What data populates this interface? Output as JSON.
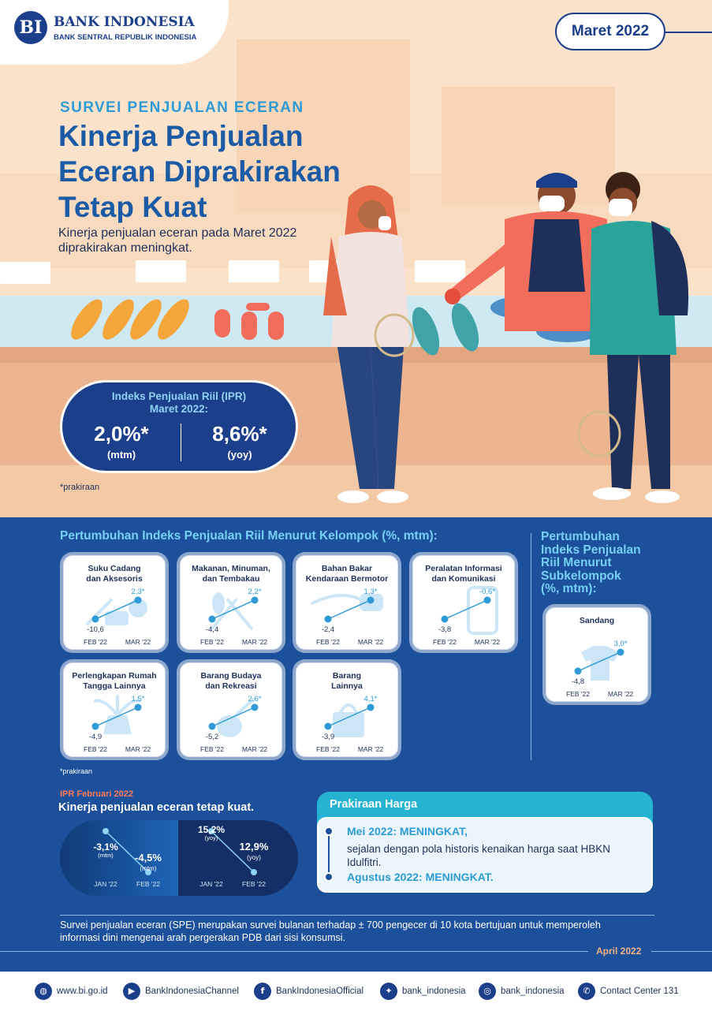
{
  "brand": {
    "logo_mark": "BI",
    "name": "BANK INDONESIA",
    "subtitle": "BANK SENTRAL REPUBLIK INDONESIA"
  },
  "period_badge": "Maret 2022",
  "hero": {
    "kicker": "SURVEI PENJUALAN ECERAN",
    "headline": "Kinerja Penjualan Eceran Diprakirakan Tetap Kuat",
    "lead": "Kinerja penjualan eceran pada Maret 2022 diprakirakan meningkat.",
    "ipr": {
      "title_line1": "Indeks Penjualan Riil (IPR)",
      "title_line2": "Maret 2022:",
      "mtm_value": "2,0%*",
      "mtm_unit": "(mtm)",
      "yoy_value": "8,6%*",
      "yoy_unit": "(yoy)"
    },
    "note": "*prakiraan"
  },
  "groups_section": {
    "title": "Pertumbuhan Indeks Penjualan Riil Menurut Kelompok (%, mtm):",
    "note": "*prakiraan",
    "x_labels": [
      "FEB '22",
      "MAR '22"
    ],
    "cards": [
      {
        "title_lines": [
          "Suku Cadang",
          "dan Aksesoris"
        ],
        "icon": "car-parts-icon",
        "feb": "-10,6",
        "mar": "2,3*",
        "feb_value": -10.6,
        "mar_value": 2.3
      },
      {
        "title_lines": [
          "Makanan, Minuman,",
          "dan Tembakau"
        ],
        "icon": "cutlery-icon",
        "feb": "-4,4",
        "mar": "2,2*",
        "feb_value": -4.4,
        "mar_value": 2.2
      },
      {
        "title_lines": [
          "Bahan Bakar",
          "Kendaraan Bermotor"
        ],
        "icon": "fuel-nozzle-icon",
        "feb": "-2,4",
        "mar": "1,3*",
        "feb_value": -2.4,
        "mar_value": 1.3
      },
      {
        "title_lines": [
          "Peralatan Informasi",
          "dan Komunikasi"
        ],
        "icon": "phone-icon",
        "feb": "-3,8",
        "mar": "-0,6*",
        "feb_value": -3.8,
        "mar_value": -0.6
      },
      {
        "title_lines": [
          "Perlengkapan Rumah",
          "Tangga Lainnya"
        ],
        "icon": "plant-pot-icon",
        "feb": "-4,9",
        "mar": "1,5*",
        "feb_value": -4.9,
        "mar_value": 1.5
      },
      {
        "title_lines": [
          "Barang Budaya",
          "dan Rekreasi"
        ],
        "icon": "guitar-icon",
        "feb": "-5,2",
        "mar": "2,6*",
        "feb_value": -5.2,
        "mar_value": 2.6
      },
      {
        "title_lines": [
          "Barang",
          "Lainnya"
        ],
        "icon": "shopping-bag-icon",
        "feb": "-3,9",
        "mar": "4,1*",
        "feb_value": -3.9,
        "mar_value": 4.1
      }
    ]
  },
  "subgroup_section": {
    "title_lines": [
      "Pertumbuhan",
      "Indeks Penjualan",
      "Riil Menurut",
      "Subkelompok",
      "(%, mtm):"
    ],
    "card": {
      "title_lines": [
        "Sandang"
      ],
      "icon": "tshirt-icon",
      "feb": "-4,8",
      "mar": "3,0*",
      "feb_value": -4.8,
      "mar_value": 3.0
    }
  },
  "feb_summary": {
    "label": "IPR Februari 2022",
    "headline": "Kinerja penjualan eceran tetap kuat.",
    "mtm": {
      "jan": "-3,1%",
      "jan_unit": "(mtm)",
      "feb": "-4,5%",
      "feb_unit": "(mtm)",
      "jan_value": -3.1,
      "feb_value": -4.5,
      "x_labels": [
        "JAN '22",
        "FEB '22"
      ]
    },
    "yoy": {
      "jan": "15,2%",
      "jan_unit": "(yoy)",
      "feb": "12,9%",
      "feb_unit": "(yoy)",
      "jan_value": 15.2,
      "feb_value": 12.9,
      "x_labels": [
        "JAN '22",
        "FEB '22"
      ]
    }
  },
  "price_outlook": {
    "title": "Prakiraan Harga",
    "item1_key": "Mei 2022: MENINGKAT,",
    "item1_desc": "sejalan dengan pola historis kenaikan harga saat HBKN Idulfitri.",
    "item2_key": "Agustus 2022: MENINGKAT."
  },
  "footer": {
    "note": "Survei penjualan eceran (SPE) merupakan survei bulanan terhadap ± 700 pengecer di 10 kota bertujuan untuk memperoleh informasi dini mengenai arah pergerakan PDB dari sisi konsumsi.",
    "release_date": "April 2022"
  },
  "contacts": [
    {
      "icon": "globe-icon",
      "glyph": "◍",
      "label": "www.bi.go.id"
    },
    {
      "icon": "youtube-icon",
      "glyph": "▶",
      "label": "BankIndonesiaChannel"
    },
    {
      "icon": "facebook-icon",
      "glyph": "f",
      "label": "BankIndonesiaOfficial"
    },
    {
      "icon": "twitter-icon",
      "glyph": "✦",
      "label": "bank_indonesia"
    },
    {
      "icon": "instagram-icon",
      "glyph": "◎",
      "label": "bank_indonesia"
    },
    {
      "icon": "phone-call-icon",
      "glyph": "✆",
      "label": "Contact Center 131"
    }
  ],
  "colors": {
    "navy": "#1c3f8c",
    "section_bg": "#1c509a",
    "accent_blue": "#2e9bd6",
    "light_blue": "#77d0f5",
    "hero_bg": "#fbe2cb",
    "teal": "#26b3d1",
    "orange": "#ff7a59"
  }
}
